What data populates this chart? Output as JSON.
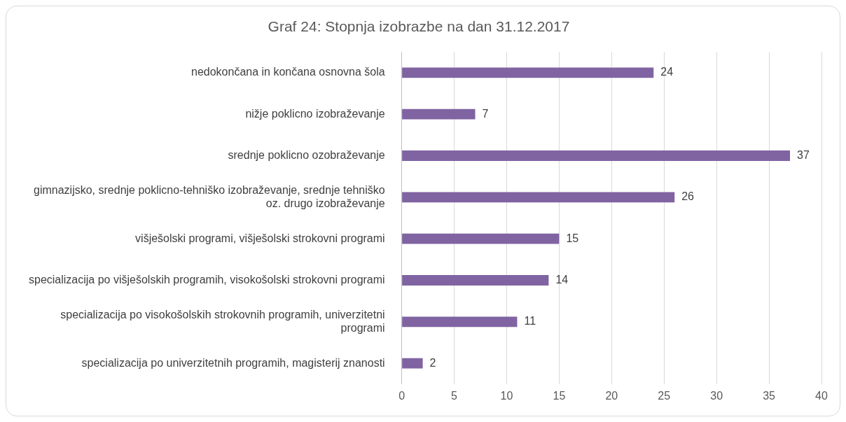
{
  "chart_data": {
    "type": "bar",
    "orientation": "horizontal",
    "title": "Graf 24: Stopnja izobrazbe na dan 31.12.2017",
    "categories": [
      "nedokončana in končana osnovna šola",
      "nižje poklicno izobraževanje",
      "srednje poklicno ozobraževanje",
      "gimnazijsko, srednje poklicno-tehniško izobraževanje, srednje tehniško oz. drugo izobraževanje",
      "višješolski programi, višješolski strokovni programi",
      "specializacija po višješolskih programih, visokošolski strokovni programi",
      "specializacija po visokošolskih strokovnih programih, univerzitetni programi",
      "specializacija po univerzitetnih programih, magisterij znanosti"
    ],
    "values": [
      24,
      7,
      37,
      26,
      15,
      14,
      11,
      2
    ],
    "color": "#8064a2",
    "xlim": [
      0,
      40
    ],
    "xticks": [
      0,
      5,
      10,
      15,
      20,
      25,
      30,
      35,
      40
    ],
    "grid": "x",
    "data_labels": true,
    "legend": false
  }
}
